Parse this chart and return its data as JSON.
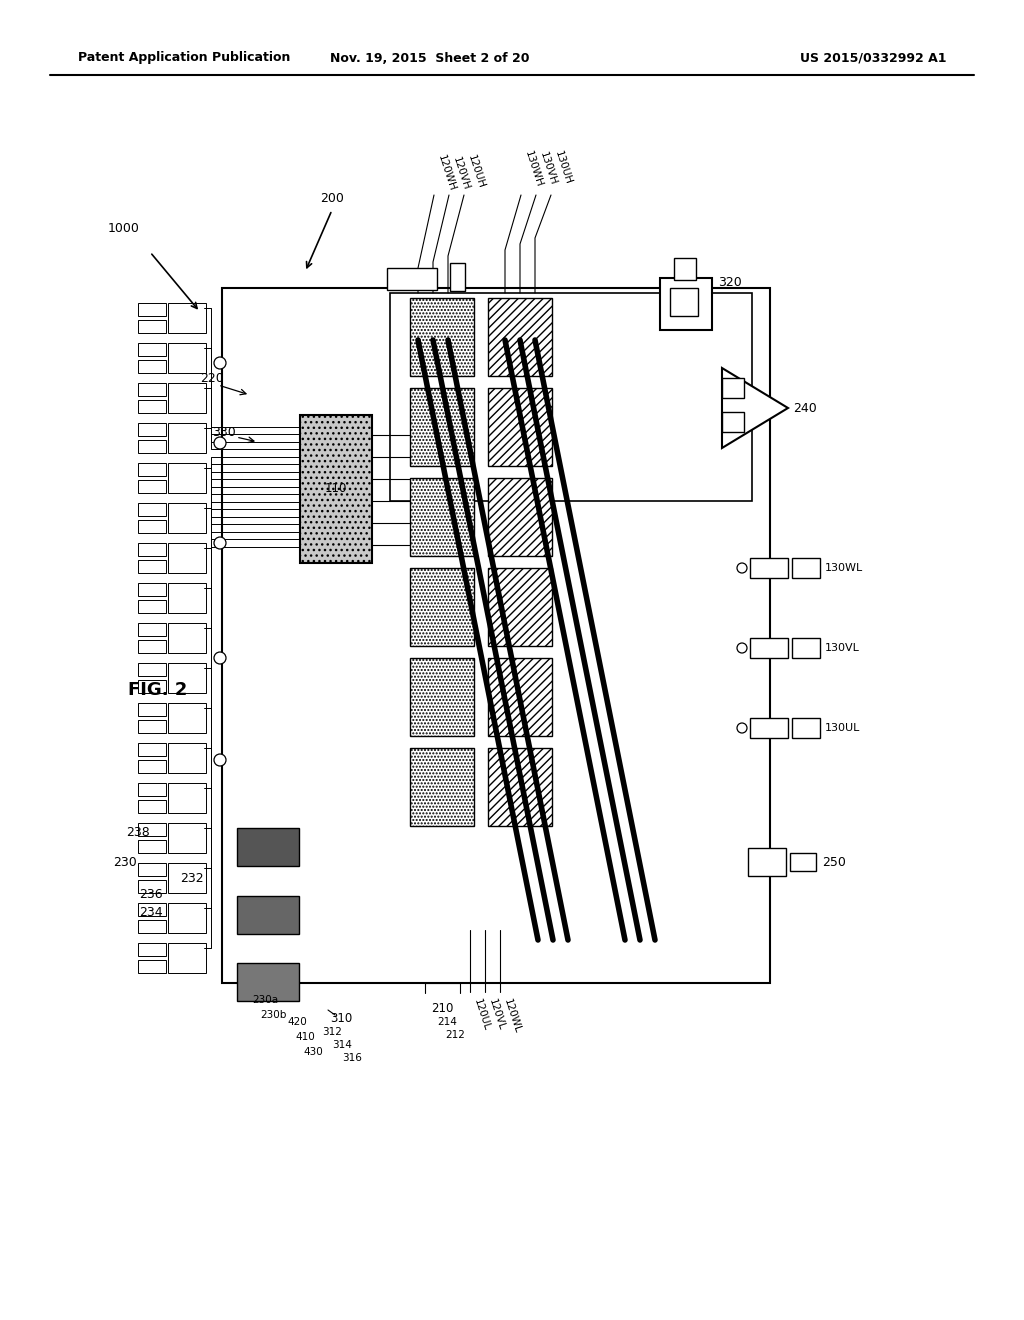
{
  "bg": "#ffffff",
  "header_left": "Patent Application Publication",
  "header_mid": "Nov. 19, 2015  Sheet 2 of 20",
  "header_right": "US 2015/0332992 A1",
  "fig_label": "FIG. 2",
  "label_1000": "1000",
  "label_200": "200",
  "label_110": "110",
  "label_220": "220",
  "label_330": "330",
  "label_230": "230",
  "label_238": "238",
  "label_236": "236",
  "label_234": "234",
  "label_232": "232",
  "label_230a": "230a",
  "label_230b": "230b",
  "label_420": "420",
  "label_410": "410",
  "label_430": "430",
  "label_312": "312",
  "label_314": "314",
  "label_316": "316",
  "label_310": "310",
  "label_210": "210",
  "label_214": "214",
  "label_212": "212",
  "label_120UL": "120UL",
  "label_120VL": "120VL",
  "label_120WL": "120WL",
  "label_120WH": "120WH",
  "label_120VH": "120VH",
  "label_120UH": "120UH",
  "label_130WH": "130WH",
  "label_130VH": "130VH",
  "label_130UH": "130UH",
  "label_320": "320",
  "label_240": "240",
  "label_130WL": "130WL",
  "label_130VL": "130VL",
  "label_130UL": "130UL",
  "label_250": "250"
}
